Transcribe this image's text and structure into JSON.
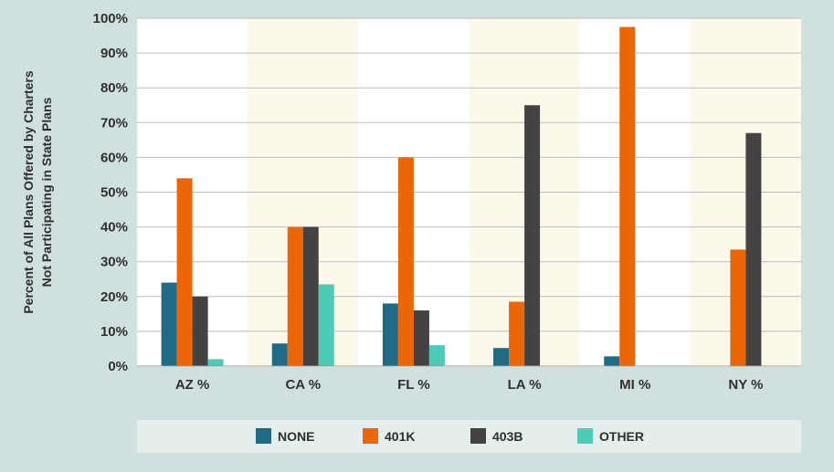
{
  "chart_data": {
    "type": "bar",
    "title": "",
    "ylabel_lines": [
      "Percent of All Plans Offered by Charters",
      "Not Participating in State Plans"
    ],
    "categories": [
      "AZ %",
      "CA %",
      "FL %",
      "LA %",
      "MI %",
      "NY %"
    ],
    "yticks": [
      "0%",
      "10%",
      "20%",
      "30%",
      "40%",
      "50%",
      "60%",
      "70%",
      "80%",
      "90%",
      "100%"
    ],
    "ylim": [
      0,
      100
    ],
    "grid": true,
    "legend_position": "bottom",
    "series": [
      {
        "name": "NONE",
        "color": "#1f6b85",
        "values": [
          24,
          6.5,
          18,
          5.2,
          2.8,
          0
        ]
      },
      {
        "name": "401K",
        "color": "#ec6608",
        "values": [
          54,
          40,
          60,
          18.5,
          97.5,
          33.5
        ]
      },
      {
        "name": "403B",
        "color": "#454341",
        "values": [
          20,
          40,
          16,
          75,
          0,
          67
        ]
      },
      {
        "name": "OTHER",
        "color": "#4ecbb8",
        "values": [
          2,
          23.5,
          6,
          0,
          0,
          0
        ]
      }
    ],
    "band_colors": [
      "#ffffff",
      "#fcf8ea"
    ],
    "gridline_color": "#bcbcbc"
  }
}
